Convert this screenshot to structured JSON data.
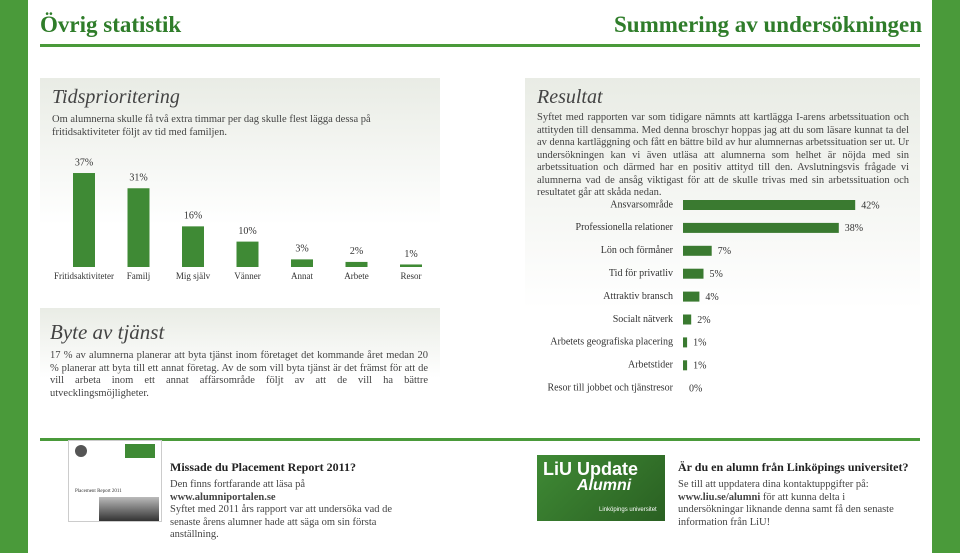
{
  "header": {
    "left_title": "Övrig statistik",
    "right_title": "Summering av undersökningen"
  },
  "time_section": {
    "title": "Tidsprioritering",
    "text": "Om alumnerna skulle få två extra timmar per dag skulle flest lägga dessa på fritidsaktiviteter följt av tid med familjen."
  },
  "change_section": {
    "title": "Byte av tjänst",
    "text": "17 % av alumnerna planerar att byta tjänst inom företaget det kommande året medan 20 % planerar att byta till ett annat företag. Av de som vill byta tjänst är det främst för att de vill arbeta inom ett annat affärsområde följt av att de vill ha bättre utvecklingsmöjligheter."
  },
  "result_section": {
    "title": "Resultat",
    "text": "Syftet med rapporten var som tidigare nämnts att kartlägga I-arens arbetssituation och attityden till densamma. Med denna broschyr hoppas jag att du som läsare kunnat ta del av denna kartläggning och fått en bättre bild av hur alumnernas arbetssituation ser ut. Ur undersökningen kan vi även utläsa att alumnerna som helhet är nöjda med sin arbetssituation och därmed har en positiv attityd till den. Avslutningsvis frågade vi alumnerna vad de ansåg viktigast för att de skulle trivas med sin arbetssituation och resultatet går att skåda nedan."
  },
  "chart_data": [
    {
      "type": "bar",
      "categories": [
        "Fritidsaktiviteter",
        "Familj",
        "Mig själv",
        "Vänner",
        "Annat",
        "Arbete",
        "Resor"
      ],
      "values": [
        37,
        31,
        16,
        10,
        3,
        2,
        1
      ],
      "value_labels": [
        "37%",
        "31%",
        "16%",
        "10%",
        "3%",
        "2%",
        "1%"
      ],
      "color": "#3f8a35"
    },
    {
      "type": "hbar",
      "categories": [
        "Ansvarsområde",
        "Professionella relationer",
        "Lön och förmåner",
        "Tid för privatliv",
        "Attraktiv bransch",
        "Socialt nätverk",
        "Arbetets geografiska placering",
        "Arbetstider",
        "Resor till jobbet och tjänstresor"
      ],
      "values": [
        42,
        38,
        7,
        5,
        4,
        2,
        1,
        1,
        0
      ],
      "value_labels": [
        "42%",
        "38%",
        "7%",
        "5%",
        "4%",
        "2%",
        "1%",
        "1%",
        "0%"
      ],
      "color": "#3a7a30"
    }
  ],
  "ad_left": {
    "thumbnail_text": "Placement Report 2011",
    "title": "Missade du Placement Report 2011?",
    "line1": "Den finns fortfarande att läsa på",
    "url": "www.alumniportalen.se",
    "text": "Syftet med 2011 års rapport var att undersöka vad de senaste årens alumner hade att säga om sin första anställning."
  },
  "ad_right": {
    "image_title": "LiU Update",
    "image_subtitle": "Alumni",
    "image_caption": "Linköpings universitet",
    "title": "Är du en alumn från Linköpings universitet?",
    "line1": "Se till att uppdatera dina kontaktuppgifter på:",
    "url": "www.liu.se/alumni",
    "text": "för att kunna delta i undersökningar liknande denna samt få den senaste information från LiU!"
  }
}
